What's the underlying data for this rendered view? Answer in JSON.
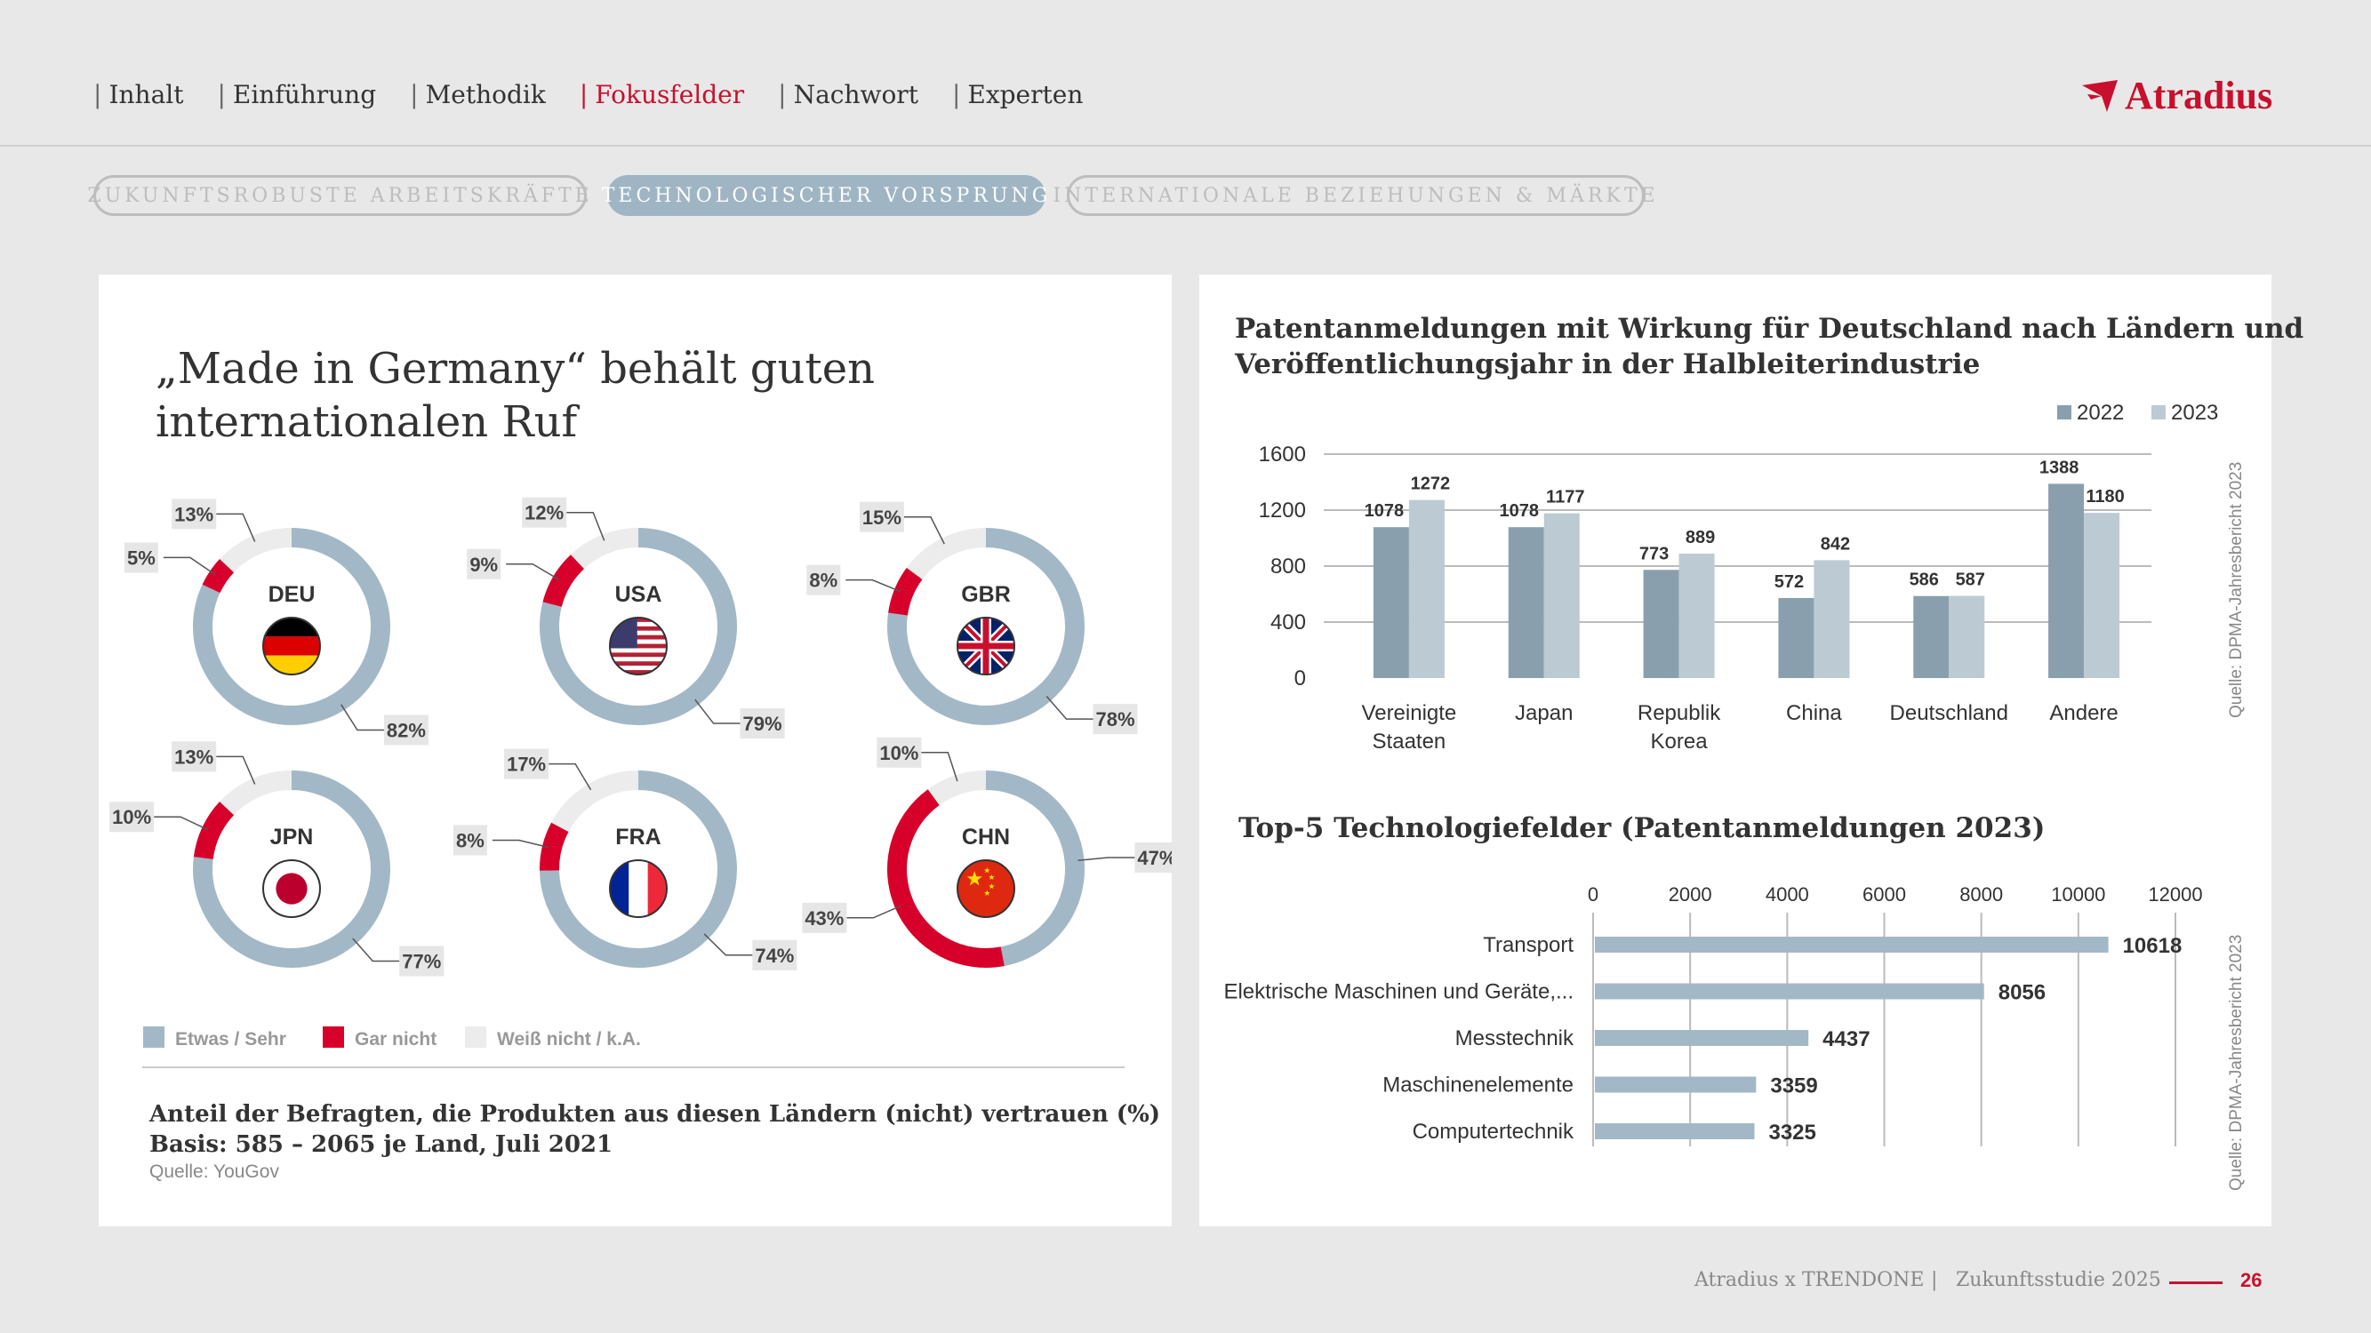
{
  "nav": [
    {
      "label": "Inhalt",
      "active": false
    },
    {
      "label": "Einführung",
      "active": false
    },
    {
      "label": "Methodik",
      "active": false
    },
    {
      "label": "Fokusfelder",
      "active": true
    },
    {
      "label": "Nachwort",
      "active": false
    },
    {
      "label": "Experten",
      "active": false
    }
  ],
  "logo_text": "Atradius",
  "tabs": [
    {
      "label": "ZUKUNFTSROBUSTE ARBEITSKRÄFTE",
      "active": false
    },
    {
      "label": "TECHNOLOGISCHER VORSPRUNG",
      "active": true
    },
    {
      "label": "INTERNATIONALE BEZIEHUNGEN & MÄRKTE",
      "active": false
    }
  ],
  "left": {
    "title_line1": "„Made in Germany“ behält guten",
    "title_line2": "internationalen Ruf",
    "caption_line1": "Anteil der Befragten, die Produkten aus diesen Ländern (nicht) vertrauen (%)",
    "caption_line2": "Basis: 585 – 2065 je Land, Juli 2021",
    "source": "Quelle: YouGov"
  },
  "colors": {
    "trust": "#a3b8c6",
    "no_trust": "#d6002a",
    "unknown": "#ececec",
    "bar2022": "#8a9fae",
    "bar2023": "#bccad4",
    "accent": "#c8102e"
  },
  "chart_data": [
    {
      "type": "pie",
      "variant": "donut",
      "legend": [
        "Etwas / Sehr",
        "Gar nicht",
        "Weiß nicht / k.A."
      ],
      "countries": [
        {
          "code": "DEU",
          "flag": "germany-flag",
          "values": [
            82,
            5,
            13
          ]
        },
        {
          "code": "USA",
          "flag": "usa-flag",
          "values": [
            79,
            9,
            12
          ]
        },
        {
          "code": "GBR",
          "flag": "uk-flag",
          "values": [
            78,
            8,
            15
          ]
        },
        {
          "code": "JPN",
          "flag": "japan-flag",
          "values": [
            77,
            10,
            13
          ]
        },
        {
          "code": "FRA",
          "flag": "france-flag",
          "values": [
            74,
            8,
            17
          ]
        },
        {
          "code": "CHN",
          "flag": "china-flag",
          "values": [
            47,
            43,
            10
          ]
        }
      ]
    },
    {
      "type": "bar",
      "title_line1": "Patentanmeldungen mit Wirkung für Deutschland nach Ländern und",
      "title_line2": "Veröffentlichungsjahr in der Halbleiterindustrie",
      "categories": [
        [
          "Vereinigte",
          "Staaten"
        ],
        [
          "Japan"
        ],
        [
          "Republik",
          "Korea"
        ],
        [
          "China"
        ],
        [
          "Deutschland"
        ],
        [
          "Andere"
        ]
      ],
      "series": [
        {
          "name": "2022",
          "values": [
            1078,
            1078,
            773,
            572,
            586,
            1388
          ]
        },
        {
          "name": "2023",
          "values": [
            1272,
            1177,
            889,
            842,
            587,
            1180
          ]
        }
      ],
      "yticks": [
        0,
        400,
        800,
        1200,
        1600
      ],
      "ylim": [
        0,
        1600
      ],
      "source": "Quelle: DPMA-Jahresbericht 2023"
    },
    {
      "type": "bar",
      "orientation": "horizontal",
      "title": "Top-5 Technologiefelder (Patentanmeldungen 2023)",
      "categories": [
        "Transport",
        "Elektrische Maschinen und Geräte,...",
        "Messtechnik",
        "Maschinenelemente",
        "Computertechnik"
      ],
      "values": [
        10618,
        8056,
        4437,
        3359,
        3325
      ],
      "xticks": [
        0,
        2000,
        4000,
        6000,
        8000,
        10000,
        12000
      ],
      "xlim": [
        0,
        12000
      ],
      "source": "Quelle: DPMA-Jahresbericht 2023"
    }
  ],
  "footer": {
    "left": "Atradius x TRENDONE",
    "sep": "|",
    "right": "Zukunftsstudie 2025",
    "page": "26"
  }
}
